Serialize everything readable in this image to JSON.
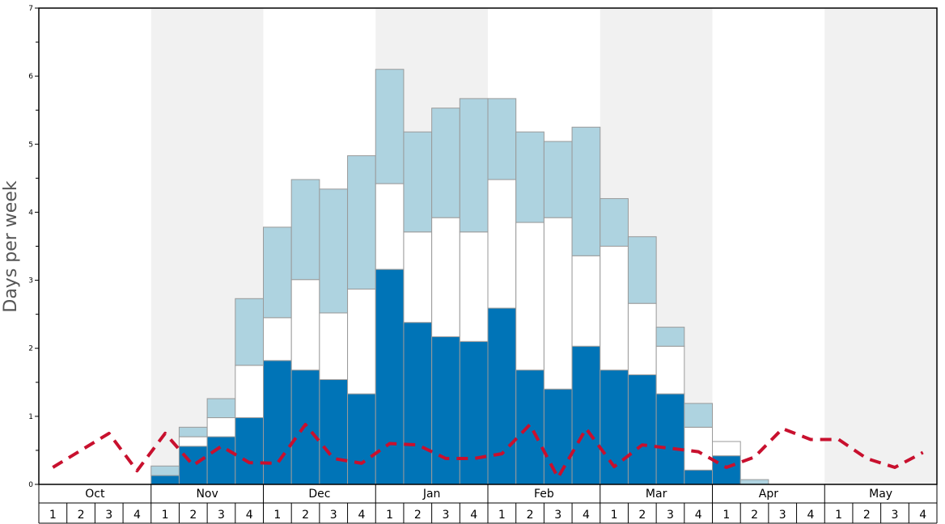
{
  "chart_data": {
    "type": "bar",
    "stacked": true,
    "ylabel": "Days per week",
    "ylim": [
      0,
      7
    ],
    "y_ticks": [
      0,
      1,
      2,
      3,
      4,
      5,
      6,
      7
    ],
    "months": [
      "Oct",
      "Nov",
      "Dec",
      "Jan",
      "Feb",
      "Mar",
      "Apr",
      "May"
    ],
    "weeks": [
      "1",
      "2",
      "3",
      "4"
    ],
    "shaded_months": [
      "Nov",
      "Jan",
      "Mar",
      "May"
    ],
    "colors": {
      "dark": "#0074b7",
      "white": "#ffffff",
      "light": "#aed3e0",
      "line": "#c8102e",
      "shade": "#f1f1f1",
      "bar_edge": "#9a9a9a"
    },
    "series": [
      {
        "key": "dark",
        "values": [
          0,
          0,
          0,
          0,
          0.13,
          0.56,
          0.7,
          0.98,
          1.82,
          1.68,
          1.54,
          1.33,
          3.16,
          2.38,
          2.17,
          2.1,
          2.59,
          1.68,
          1.4,
          2.03,
          1.68,
          1.61,
          1.33,
          0.21,
          0.42,
          0,
          0,
          0,
          0,
          0,
          0,
          0
        ]
      },
      {
        "key": "white",
        "values": [
          0,
          0,
          0,
          0,
          0,
          0.14,
          0.28,
          0.77,
          0.63,
          1.33,
          0.98,
          1.54,
          1.26,
          1.33,
          1.75,
          1.61,
          1.89,
          2.17,
          2.52,
          1.33,
          1.82,
          1.05,
          0.7,
          0.63,
          0.21,
          0,
          0,
          0,
          0,
          0,
          0,
          0
        ]
      },
      {
        "key": "light",
        "values": [
          0,
          0,
          0,
          0,
          0.14,
          0.14,
          0.28,
          0.98,
          1.33,
          1.47,
          1.82,
          1.96,
          1.68,
          1.47,
          1.61,
          1.96,
          1.19,
          1.33,
          1.12,
          1.89,
          0.7,
          0.98,
          0.28,
          0.35,
          0,
          0.07,
          0,
          0,
          0,
          0,
          0,
          0
        ]
      }
    ],
    "line": {
      "key": "line",
      "values": [
        0.25,
        0.5,
        0.75,
        0.2,
        0.75,
        0.28,
        0.56,
        0.32,
        0.31,
        0.88,
        0.38,
        0.31,
        0.6,
        0.58,
        0.38,
        0.38,
        0.45,
        0.88,
        0.1,
        0.82,
        0.26,
        0.58,
        0.53,
        0.48,
        0.25,
        0.4,
        0.82,
        0.66,
        0.66,
        0.38,
        0.25,
        0.47
      ]
    }
  }
}
